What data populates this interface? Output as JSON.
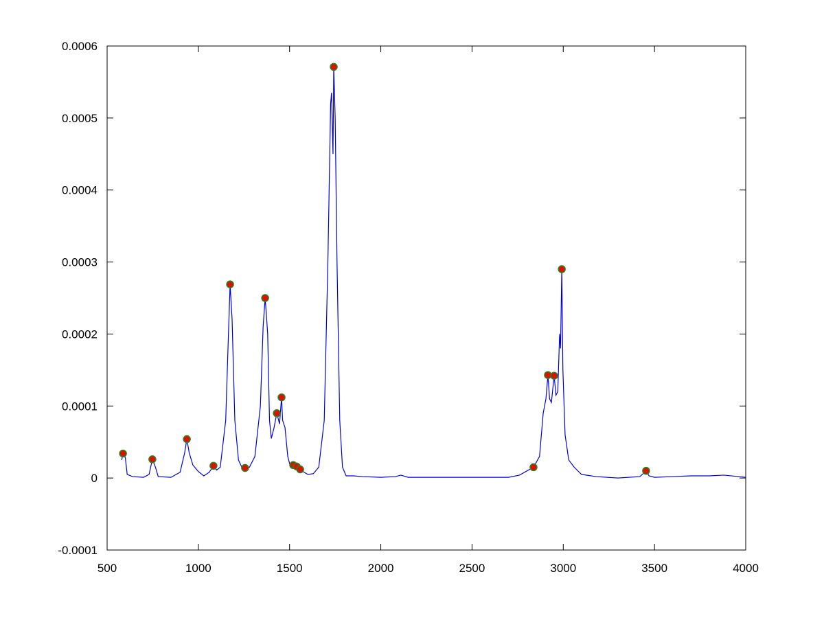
{
  "chart_data": {
    "type": "line",
    "color": "#0000dd",
    "x": [
      580,
      587,
      600,
      610,
      640,
      700,
      730,
      748,
      765,
      780,
      850,
      900,
      925,
      937,
      950,
      970,
      1000,
      1030,
      1060,
      1083,
      1100,
      1120,
      1150,
      1165,
      1174,
      1185,
      1200,
      1220,
      1240,
      1256,
      1280,
      1310,
      1340,
      1355,
      1366,
      1372,
      1380,
      1390,
      1400,
      1415,
      1430,
      1445,
      1456,
      1462,
      1475,
      1490,
      1505,
      1520,
      1539,
      1558,
      1580,
      1600,
      1630,
      1660,
      1690,
      1710,
      1725,
      1730,
      1738,
      1742,
      1750,
      1760,
      1775,
      1790,
      1810,
      1850,
      1900,
      2000,
      2080,
      2110,
      2150,
      2300,
      2500,
      2700,
      2760,
      2837,
      2870,
      2890,
      2905,
      2916,
      2925,
      2935,
      2950,
      2960,
      2970,
      2980,
      2985,
      2992,
      2998,
      3010,
      3030,
      3060,
      3100,
      3180,
      3300,
      3420,
      3454,
      3470,
      3500,
      3600,
      3700,
      3800,
      3880,
      4000
    ],
    "values": [
      2.5e-05,
      3.4e-05,
      2.8e-05,
      5e-06,
      2e-06,
      1e-06,
      5e-06,
      2.6e-05,
      1.5e-05,
      2e-06,
      1e-06,
      8e-06,
      3.5e-05,
      5.4e-05,
      3.5e-05,
      1.8e-05,
      9e-06,
      3e-06,
      8e-06,
      1.7e-05,
      1.1e-05,
      1.5e-05,
      8e-05,
      0.0002,
      0.000269,
      0.00022,
      8e-05,
      2.5e-05,
      1.4e-05,
      1.4e-05,
      1.5e-05,
      3e-05,
      0.0001,
      0.00021,
      0.00025,
      0.00023,
      0.0002,
      8e-05,
      5.5e-05,
      7e-05,
      9e-05,
      7.5e-05,
      0.000112,
      8e-05,
      7e-05,
      3e-05,
      1.5e-05,
      1.8e-05,
      1.6e-05,
      1.2e-05,
      8e-06,
      5e-06,
      6e-06,
      1.5e-05,
      8e-05,
      0.0003,
      0.00052,
      0.000535,
      0.00045,
      0.000571,
      0.0005,
      0.0003,
      8e-05,
      1.5e-05,
      3e-06,
      3e-06,
      2e-06,
      1e-06,
      2e-06,
      4e-06,
      1e-06,
      1e-06,
      1e-06,
      1e-06,
      4e-06,
      1.5e-05,
      3e-05,
      9e-05,
      0.00011,
      0.000143,
      0.00011,
      0.000105,
      0.000142,
      0.000115,
      0.00012,
      0.0002,
      0.00018,
      0.00029,
      0.00015,
      6e-05,
      2.5e-05,
      1.5e-05,
      5e-06,
      2e-06,
      0,
      2e-06,
      1e-05,
      3e-06,
      1e-06,
      2e-06,
      3e-06,
      3e-06,
      4e-06,
      1e-06
    ],
    "peaks": {
      "color": "#dd1100",
      "edgecolor": "#228822",
      "x": [
        587,
        748,
        937,
        1083,
        1174,
        1256,
        1366,
        1430,
        1456,
        1520,
        1539,
        1558,
        1742,
        2837,
        2916,
        2950,
        2992,
        3454
      ],
      "values": [
        3.4e-05,
        2.6e-05,
        5.4e-05,
        1.7e-05,
        0.000269,
        1.4e-05,
        0.00025,
        9e-05,
        0.000112,
        1.8e-05,
        1.6e-05,
        1.2e-05,
        0.000571,
        1.5e-05,
        0.000143,
        0.000142,
        0.00029,
        1e-05
      ]
    },
    "xlim": [
      500,
      4000
    ],
    "ylim": [
      -0.0001,
      0.0006
    ],
    "xticks": [
      500,
      1000,
      1500,
      2000,
      2500,
      3000,
      3500,
      4000
    ],
    "yticks": [
      -0.0001,
      0,
      0.0001,
      0.0002,
      0.0003,
      0.0004,
      0.0005,
      0.0006
    ]
  }
}
